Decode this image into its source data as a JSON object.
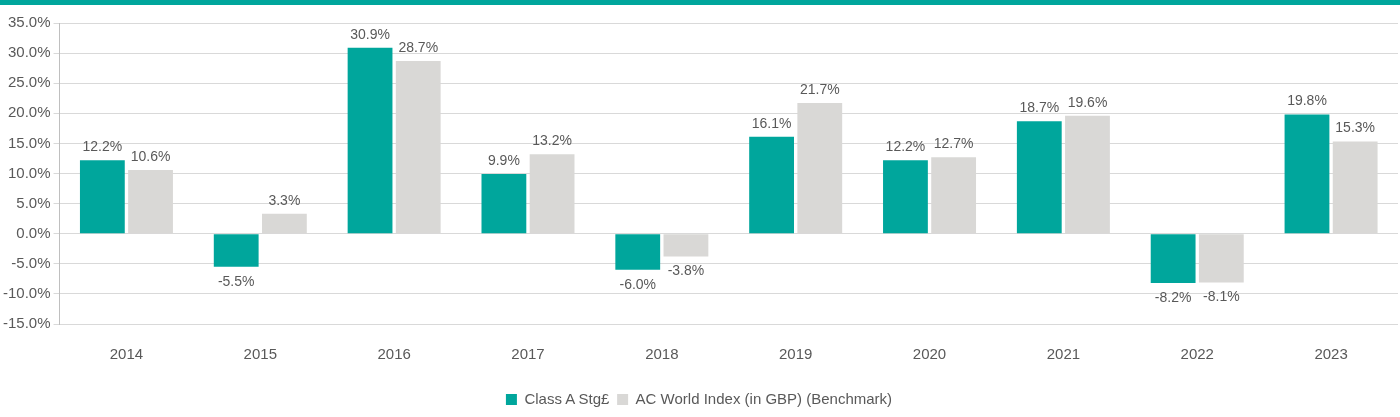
{
  "chart_data": {
    "type": "bar",
    "categories": [
      "2014",
      "2015",
      "2016",
      "2017",
      "2018",
      "2019",
      "2020",
      "2021",
      "2022",
      "2023"
    ],
    "series": [
      {
        "name": "Class A Stg£",
        "color": "#00a69c",
        "values": [
          12.2,
          -5.5,
          30.9,
          9.9,
          -6.0,
          16.1,
          12.2,
          18.7,
          -8.2,
          19.8
        ],
        "value_labels": [
          "12.2%",
          "-5.5%",
          "30.9%",
          "9.9%",
          "-6.0%",
          "16.1%",
          "12.2%",
          "18.7%",
          "-8.2%",
          "19.8%"
        ]
      },
      {
        "name": "AC World Index (in GBP) (Benchmark)",
        "color": "#d9d8d6",
        "values": [
          10.6,
          3.3,
          28.7,
          13.2,
          -3.8,
          21.7,
          12.7,
          19.6,
          -8.1,
          15.3
        ],
        "value_labels": [
          "10.6%",
          "3.3%",
          "28.7%",
          "13.2%",
          "-3.8%",
          "21.7%",
          "12.7%",
          "19.6%",
          "-8.1%",
          "15.3%"
        ]
      }
    ],
    "ylim": [
      -15,
      35
    ],
    "yticks": [
      {
        "value": -15,
        "label": "-15.0%"
      },
      {
        "value": -10,
        "label": "-10.0%"
      },
      {
        "value": -5,
        "label": "-5.0%"
      },
      {
        "value": 0,
        "label": "0.0%"
      },
      {
        "value": 5,
        "label": "5.0%"
      },
      {
        "value": 10,
        "label": "10.0%"
      },
      {
        "value": 15,
        "label": "15.0%"
      },
      {
        "value": 20,
        "label": "20.0%"
      },
      {
        "value": 25,
        "label": "25.0%"
      },
      {
        "value": 30,
        "label": "30.0%"
      },
      {
        "value": 35,
        "label": "35.0%"
      }
    ],
    "grid": "y",
    "legend": "bottom"
  }
}
